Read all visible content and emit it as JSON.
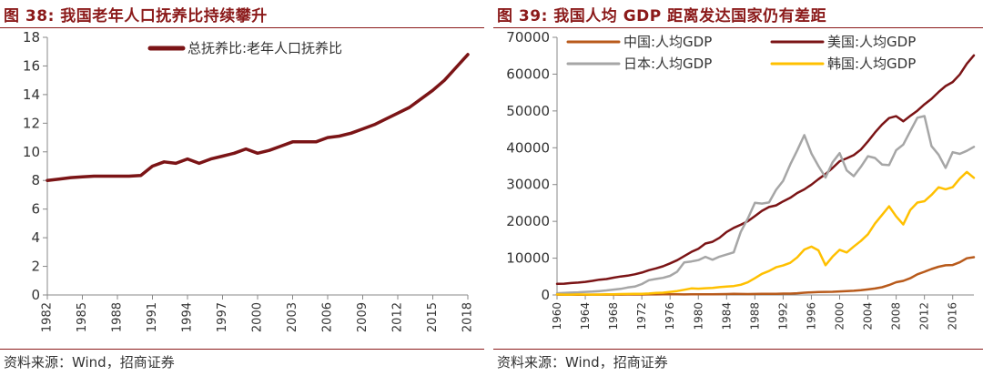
{
  "left": {
    "title": "图 38:  我国老年人口抚养比持续攀升",
    "source": "资料来源：Wind，招商证券"
  },
  "right": {
    "title": "图 39:  我国人均 GDP 距离发达国家仍有差距",
    "source": "资料来源：Wind，招商证券"
  },
  "colors": {
    "title": "#8B1A1A",
    "dependency": "#7B1416",
    "china": "#B85A1B",
    "usa": "#7B1416",
    "japan": "#A6A6A6",
    "korea": "#FFC000"
  },
  "chart_data": [
    {
      "type": "line",
      "title": "",
      "xlabel": "",
      "ylabel": "",
      "ylim": [
        0,
        18
      ],
      "yticks": [
        0,
        2,
        4,
        6,
        8,
        10,
        12,
        14,
        16,
        18
      ],
      "xlim": [
        1982,
        2018
      ],
      "xticks": [
        "1982",
        "1985",
        "1988",
        "1991",
        "1994",
        "1997",
        "2000",
        "2003",
        "2006",
        "2009",
        "2012",
        "2015",
        "2018"
      ],
      "grid": false,
      "legend_position": "top-center",
      "x": [
        1982,
        1983,
        1984,
        1985,
        1986,
        1987,
        1988,
        1989,
        1990,
        1991,
        1992,
        1993,
        1994,
        1995,
        1996,
        1997,
        1998,
        1999,
        2000,
        2001,
        2002,
        2003,
        2004,
        2005,
        2006,
        2007,
        2008,
        2009,
        2010,
        2011,
        2012,
        2013,
        2014,
        2015,
        2016,
        2017,
        2018
      ],
      "series": [
        {
          "name": "总抚养比:老年人口抚养比",
          "values": [
            8.0,
            8.1,
            8.2,
            8.25,
            8.3,
            8.3,
            8.3,
            8.3,
            8.35,
            9.0,
            9.3,
            9.2,
            9.5,
            9.2,
            9.5,
            9.7,
            9.9,
            10.2,
            9.9,
            10.1,
            10.4,
            10.7,
            10.7,
            10.7,
            11.0,
            11.1,
            11.3,
            11.6,
            11.9,
            12.3,
            12.7,
            13.1,
            13.7,
            14.3,
            15.0,
            15.9,
            16.8
          ]
        }
      ]
    },
    {
      "type": "line",
      "title": "",
      "xlabel": "",
      "ylabel": "",
      "ylim": [
        0,
        70000
      ],
      "yticks": [
        0,
        10000,
        20000,
        30000,
        40000,
        50000,
        60000,
        70000
      ],
      "xlim": [
        1960,
        2019
      ],
      "xticks": [
        "1960",
        "1964",
        "1968",
        "1972",
        "1976",
        "1980",
        "1984",
        "1988",
        "1992",
        "1996",
        "2000",
        "2004",
        "2008",
        "2012",
        "2016"
      ],
      "grid": false,
      "legend_position": "top",
      "x": [
        1960,
        1961,
        1962,
        1963,
        1964,
        1965,
        1966,
        1967,
        1968,
        1969,
        1970,
        1971,
        1972,
        1973,
        1974,
        1975,
        1976,
        1977,
        1978,
        1979,
        1980,
        1981,
        1982,
        1983,
        1984,
        1985,
        1986,
        1987,
        1988,
        1989,
        1990,
        1991,
        1992,
        1993,
        1994,
        1995,
        1996,
        1997,
        1998,
        1999,
        2000,
        2001,
        2002,
        2003,
        2004,
        2005,
        2006,
        2007,
        2008,
        2009,
        2010,
        2011,
        2012,
        2013,
        2014,
        2015,
        2016,
        2017,
        2018,
        2019
      ],
      "series": [
        {
          "name": "中国:人均GDP",
          "values": [
            90,
            76,
            70,
            74,
            85,
            98,
            104,
            96,
            91,
            100,
            113,
            119,
            132,
            157,
            160,
            178,
            165,
            185,
            156,
            184,
            195,
            197,
            203,
            225,
            250,
            294,
            281,
            252,
            284,
            311,
            318,
            333,
            366,
            377,
            473,
            610,
            709,
            782,
            829,
            873,
            959,
            1053,
            1149,
            1289,
            1509,
            1753,
            2099,
            2694,
            3468,
            3832,
            4550,
            5618,
            6317,
            7051,
            7679,
            8067,
            8148,
            8879,
            9977,
            10262
          ]
        },
        {
          "name": "美国:人均GDP",
          "values": [
            3007,
            3067,
            3244,
            3375,
            3574,
            3828,
            4146,
            4336,
            4696,
            5032,
            5234,
            5609,
            6094,
            6726,
            7226,
            7801,
            8592,
            9453,
            10565,
            11674,
            12575,
            13976,
            14434,
            15544,
            17121,
            18237,
            19071,
            20039,
            21417,
            22857,
            23889,
            24342,
            25419,
            26387,
            27695,
            28691,
            29968,
            31459,
            32854,
            34515,
            36330,
            37134,
            37998,
            39490,
            41725,
            44123,
            46302,
            48050,
            48570,
            47195,
            48651,
            50066,
            51784,
            53291,
            55124,
            56763,
            57867,
            59915,
            62805,
            65095
          ]
        },
        {
          "name": "日本:人均GDP",
          "values": [
            479,
            564,
            634,
            718,
            836,
            919,
            1058,
            1229,
            1451,
            1669,
            2037,
            2272,
            2967,
            3997,
            4354,
            4659,
            5197,
            6335,
            8821,
            9105,
            9463,
            10361,
            9578,
            10425,
            10984,
            11585,
            17112,
            20745,
            25052,
            24823,
            25124,
            28541,
            31014,
            35452,
            39269,
            43440,
            38437,
            35022,
            31903,
            36027,
            38532,
            33846,
            32289,
            34808,
            37689,
            37218,
            35434,
            35275,
            39339,
            40855,
            44508,
            48168,
            48603,
            40455,
            38109,
            34524,
            38794,
            38332,
            39159,
            40247
          ]
        },
        {
          "name": "韩国:人均GDP",
          "values": [
            158,
            94,
            106,
            146,
            124,
            109,
            133,
            161,
            198,
            243,
            279,
            301,
            324,
            406,
            563,
            615,
            834,
            1055,
            1405,
            1784,
            1711,
            1826,
            1928,
            2118,
            2307,
            2413,
            2760,
            3445,
            4549,
            5738,
            6516,
            7524,
            8002,
            8741,
            10208,
            12333,
            13138,
            12131,
            8085,
            10409,
            12257,
            11561,
            13165,
            14673,
            16496,
            19403,
            21744,
            24086,
            21350,
            19144,
            23087,
            25096,
            25467,
            27180,
            29250,
            28724,
            29289,
            31605,
            33423,
            31846
          ]
        }
      ]
    }
  ]
}
